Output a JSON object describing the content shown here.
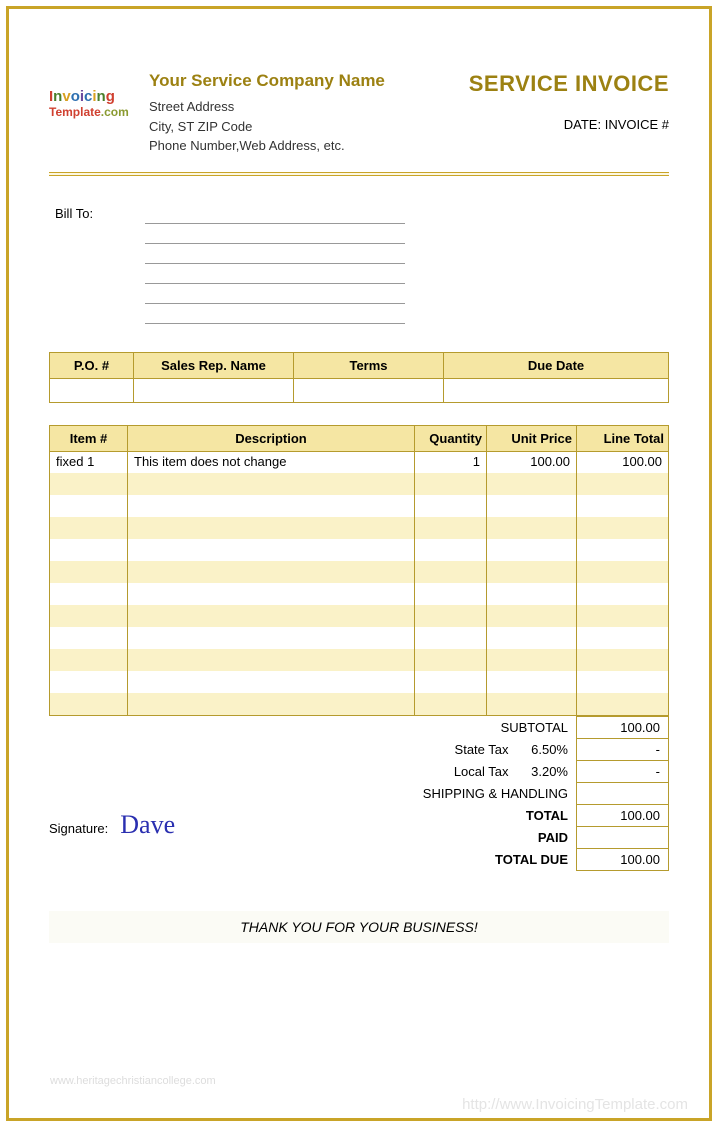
{
  "header": {
    "company_name": "Your Service Company Name",
    "street": "Street Address",
    "city_line": "City, ST  ZIP Code",
    "contact_line": "Phone Number,Web Address, etc.",
    "title": "SERVICE INVOICE",
    "date_label": "DATE:",
    "invoice_label": "INVOICE #"
  },
  "logo": {
    "line1": "Invoicing",
    "line2_a": "Template",
    "line2_b": ".com"
  },
  "billto": {
    "label": "Bill To:"
  },
  "meta_table": {
    "headers": [
      "P.O. #",
      "Sales Rep. Name",
      "Terms",
      "Due Date"
    ],
    "row": [
      "",
      "",
      "",
      ""
    ]
  },
  "items_table": {
    "headers": [
      "Item #",
      "Description",
      "Quantity",
      "Unit Price",
      "Line Total"
    ],
    "rows": [
      {
        "item": "fixed 1",
        "desc": "This item does not change",
        "qty": "1",
        "price": "100.00",
        "total": "100.00"
      },
      {
        "item": "",
        "desc": "",
        "qty": "",
        "price": "",
        "total": ""
      },
      {
        "item": "",
        "desc": "",
        "qty": "",
        "price": "",
        "total": ""
      },
      {
        "item": "",
        "desc": "",
        "qty": "",
        "price": "",
        "total": ""
      },
      {
        "item": "",
        "desc": "",
        "qty": "",
        "price": "",
        "total": ""
      },
      {
        "item": "",
        "desc": "",
        "qty": "",
        "price": "",
        "total": ""
      },
      {
        "item": "",
        "desc": "",
        "qty": "",
        "price": "",
        "total": ""
      },
      {
        "item": "",
        "desc": "",
        "qty": "",
        "price": "",
        "total": ""
      },
      {
        "item": "",
        "desc": "",
        "qty": "",
        "price": "",
        "total": ""
      },
      {
        "item": "",
        "desc": "",
        "qty": "",
        "price": "",
        "total": ""
      },
      {
        "item": "",
        "desc": "",
        "qty": "",
        "price": "",
        "total": ""
      },
      {
        "item": "",
        "desc": "",
        "qty": "",
        "price": "",
        "total": ""
      }
    ]
  },
  "totals": {
    "subtotal_label": "SUBTOTAL",
    "subtotal_value": "100.00",
    "state_tax_label": "State Tax",
    "state_tax_pct": "6.50%",
    "state_tax_value": "-",
    "local_tax_label": "Local Tax",
    "local_tax_pct": "3.20%",
    "local_tax_value": "-",
    "shipping_label": "SHIPPING & HANDLING",
    "shipping_value": "",
    "total_label": "TOTAL",
    "total_value": "100.00",
    "paid_label": "PAID",
    "paid_value": "",
    "due_label": "TOTAL DUE",
    "due_value": "100.00"
  },
  "signature": {
    "label": "Signature:",
    "name": "Dave"
  },
  "footer": {
    "thanks": "THANK YOU FOR YOUR BUSINESS!"
  },
  "watermarks": {
    "left": "www.heritagechristiancollege.com",
    "right": "http://www.InvoicingTemplate.com"
  },
  "colors": {
    "accent": "#9c8112",
    "border": "#b59b2e",
    "header_bg": "#f5e6a3",
    "stripe_bg": "#faf2c8",
    "frame": "#c9a428"
  }
}
